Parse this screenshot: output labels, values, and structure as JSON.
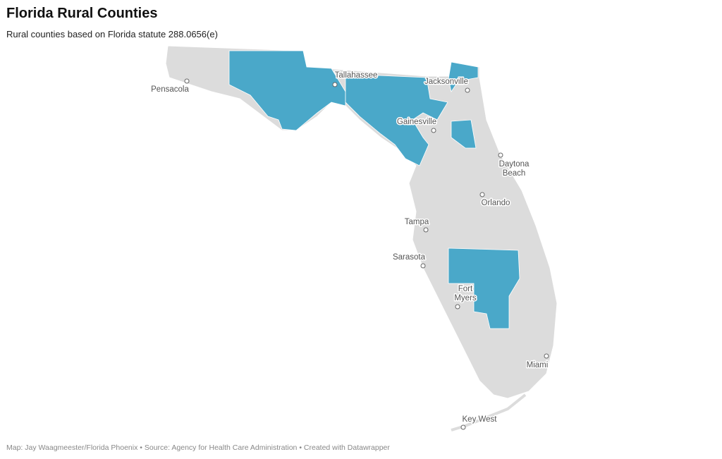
{
  "header": {
    "title": "Florida Rural Counties",
    "subtitle": "Rural counties based on Florida statute 288.0656(e)"
  },
  "cities": [
    {
      "lines": [
        "Pensacola"
      ]
    },
    {
      "lines": [
        "Tallahassee"
      ]
    },
    {
      "lines": [
        "Jacksonville"
      ]
    },
    {
      "lines": [
        "Gainesville"
      ]
    },
    {
      "lines": [
        "Daytona",
        "Beach"
      ]
    },
    {
      "lines": [
        "Orlando"
      ]
    },
    {
      "lines": [
        "Tampa"
      ]
    },
    {
      "lines": [
        "Sarasota"
      ]
    },
    {
      "lines": [
        "Fort",
        "Myers"
      ]
    },
    {
      "lines": [
        "Miami"
      ]
    },
    {
      "lines": [
        "Key West"
      ]
    }
  ],
  "footer": "Map: Jay Waagmeester/Florida Phoenix • Source: Agency for Health Care Administration • Created with Datawrapper"
}
